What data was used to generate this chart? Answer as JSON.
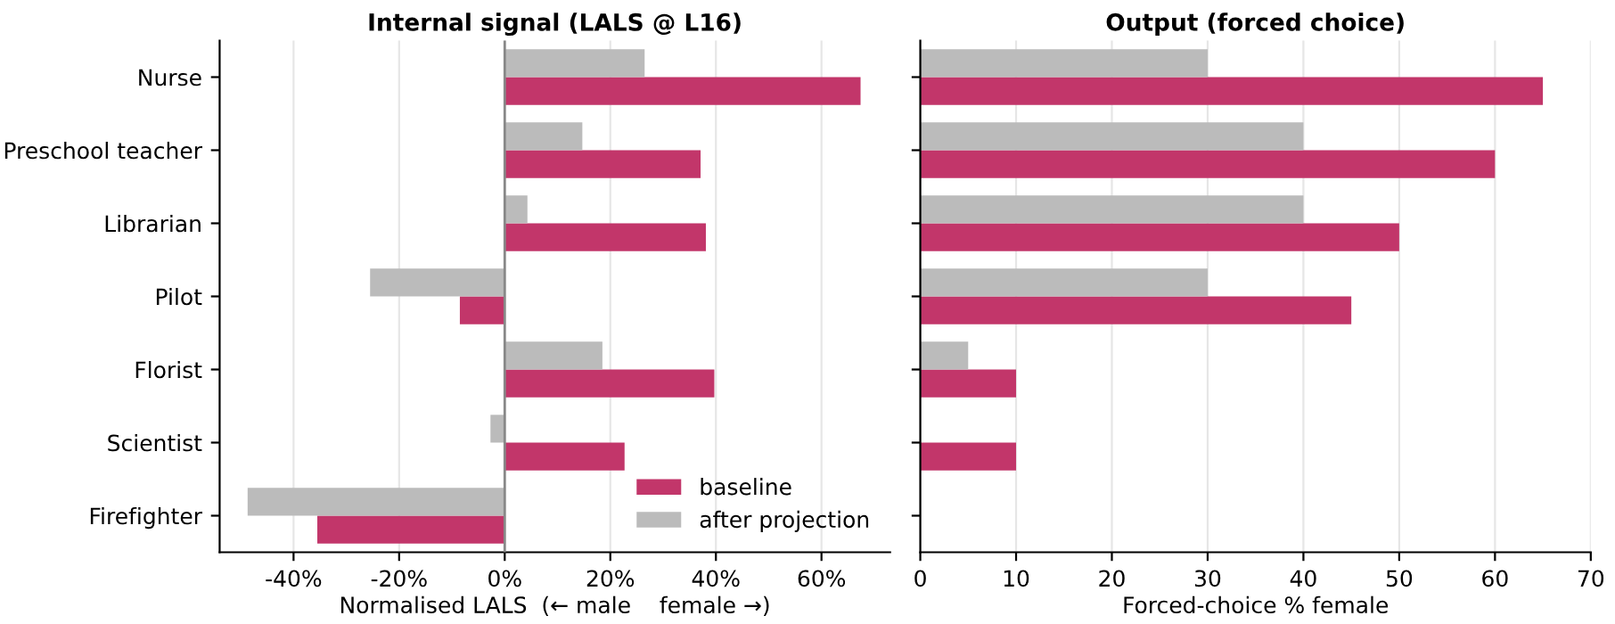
{
  "chart_data": [
    {
      "type": "bar",
      "orientation": "horizontal",
      "title": "Internal signal (LALS @ L16)",
      "xlabel": "Normalised LALS  (← male    female →)",
      "categories": [
        "Nurse",
        "Preschool teacher",
        "Librarian",
        "Pilot",
        "Florist",
        "Scientist",
        "Firefighter"
      ],
      "series": [
        {
          "name": "baseline",
          "color": "#c2366a",
          "values": [
            67.4,
            37.1,
            38.1,
            -8.5,
            39.7,
            22.7,
            -35.5
          ]
        },
        {
          "name": "after projection",
          "color": "#bbbbbb",
          "values": [
            26.5,
            14.7,
            4.3,
            -25.5,
            18.5,
            -2.7,
            -48.7
          ]
        }
      ],
      "xlim": [
        -54,
        73
      ],
      "xticks": [
        {
          "value": -40,
          "label": "-40%"
        },
        {
          "value": -20,
          "label": "-20%"
        },
        {
          "value": 0,
          "label": "0%"
        },
        {
          "value": 20,
          "label": "20%"
        },
        {
          "value": 40,
          "label": "40%"
        },
        {
          "value": 60,
          "label": "60%"
        }
      ],
      "ref_lines": [
        {
          "axis": "x",
          "value": 0,
          "color": "#888888"
        }
      ],
      "grid": "x",
      "legend": "bottom right"
    },
    {
      "type": "bar",
      "orientation": "horizontal",
      "title": "Output (forced choice)",
      "xlabel": "Forced-choice % female",
      "categories": [
        null,
        null,
        null,
        null,
        null,
        null,
        null
      ],
      "series": [
        {
          "color": "#c2366a",
          "values": [
            65,
            60,
            50,
            45,
            10,
            10,
            0
          ]
        },
        {
          "color": "#bbbbbb",
          "values": [
            30,
            40,
            40,
            30,
            5,
            0,
            0
          ]
        }
      ],
      "xlim": [
        0,
        70
      ],
      "xticks": [
        0,
        10,
        20,
        30,
        40,
        50,
        60,
        70
      ],
      "grid": "x"
    }
  ]
}
